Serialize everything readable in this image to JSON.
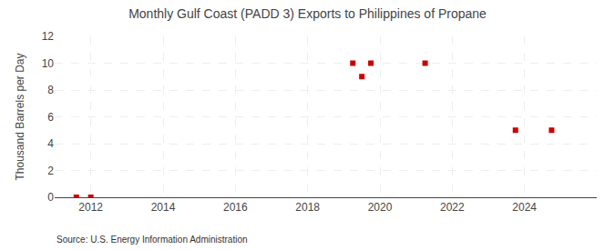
{
  "chart_data": {
    "type": "scatter",
    "title": "Monthly Gulf Coast (PADD 3) Exports to Philippines of Propane",
    "ylabel": "Thousand Barrels per Day",
    "annotations": [
      "Source: U.S. Energy Information Administration"
    ],
    "x": [
      2011.6,
      2012.0,
      2019.25,
      2019.5,
      2019.75,
      2021.25,
      2023.75,
      2024.75
    ],
    "values": [
      0.0,
      0.0,
      10.0,
      9.0,
      10.0,
      10.0,
      5.0,
      5.0
    ],
    "color": "#cc0000",
    "marker": "square",
    "xlim": [
      2011.0,
      2026.0
    ],
    "xticks": [
      2012,
      2014,
      2016,
      2018,
      2020,
      2022,
      2024
    ],
    "ylim": [
      0,
      12
    ],
    "yticks": [
      0,
      2,
      4,
      6,
      8,
      10,
      12
    ],
    "grid": true
  }
}
